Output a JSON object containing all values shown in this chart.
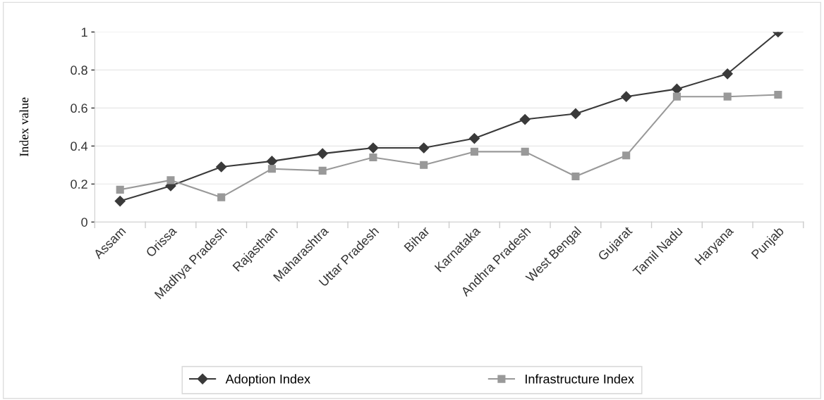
{
  "chart_data": {
    "type": "line",
    "ylabel": "Index value",
    "categories": [
      "Assam",
      "Orissa",
      "Madhya Pradesh",
      "Rajasthan",
      "Maharashtra",
      "Uttar Pradesh",
      "Bihar",
      "Karnataka",
      "Andhra Pradesh",
      "West Bengal",
      "Gujarat",
      "Tamil Nadu",
      "Haryana",
      "Punjab"
    ],
    "series": [
      {
        "name": "Adoption Index",
        "color": "#3a3a3a",
        "marker": "diamond",
        "values": [
          0.11,
          0.19,
          0.29,
          0.32,
          0.36,
          0.39,
          0.39,
          0.44,
          0.54,
          0.57,
          0.66,
          0.7,
          0.78,
          1.0
        ]
      },
      {
        "name": "Infrastructure Index",
        "color": "#999999",
        "marker": "square",
        "values": [
          0.17,
          0.22,
          0.13,
          0.28,
          0.27,
          0.34,
          0.3,
          0.37,
          0.37,
          0.24,
          0.35,
          0.66,
          0.66,
          0.67
        ]
      }
    ],
    "ylim": [
      0,
      1
    ],
    "yticks": [
      0,
      0.2,
      0.4,
      0.6,
      0.8,
      1
    ],
    "grid": "y",
    "legend": "bottom",
    "line_style": "solid"
  }
}
